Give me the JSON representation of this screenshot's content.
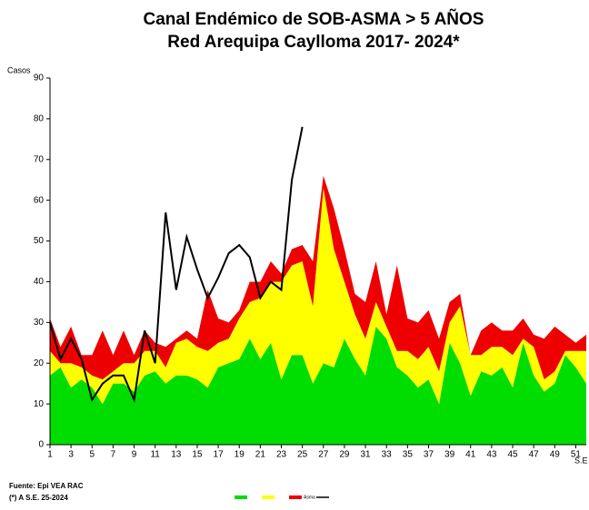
{
  "chart_data": {
    "type": "area",
    "title": "Canal Endémico de SOB-ASMA > 5 AÑOS",
    "subtitle": "Red Arequipa Caylloma 2017- 2024*",
    "y_label": "Casos",
    "x_label": "S.E",
    "source": "Fuente: Epi VEA RAC",
    "note": "(*) A S.E. 25-2024",
    "x": [
      1,
      2,
      3,
      4,
      5,
      6,
      7,
      8,
      9,
      10,
      11,
      12,
      13,
      14,
      15,
      16,
      17,
      18,
      19,
      20,
      21,
      22,
      23,
      24,
      25,
      26,
      27,
      28,
      29,
      30,
      31,
      32,
      33,
      34,
      35,
      36,
      37,
      38,
      39,
      40,
      41,
      42,
      43,
      44,
      45,
      46,
      47,
      48,
      49,
      50,
      51,
      52
    ],
    "xlim": [
      1,
      52
    ],
    "xticks": [
      1,
      3,
      5,
      7,
      9,
      11,
      13,
      15,
      17,
      19,
      21,
      23,
      25,
      27,
      29,
      31,
      33,
      35,
      37,
      39,
      41,
      43,
      45,
      47,
      49,
      51
    ],
    "ylim": [
      0,
      90
    ],
    "yticks": [
      0,
      10,
      20,
      30,
      40,
      50,
      60,
      70,
      80,
      90
    ],
    "series": [
      {
        "color": "#00dd00",
        "kind": "stacked",
        "values": [
          17,
          19,
          14,
          16,
          14,
          10,
          15,
          15,
          13,
          17,
          18,
          15,
          17,
          17,
          16,
          14,
          19,
          20,
          21,
          26,
          21,
          25,
          16,
          22,
          22,
          15,
          20,
          19,
          26,
          21,
          17,
          29,
          26,
          19,
          17,
          14,
          16,
          10,
          25,
          20,
          12,
          18,
          17,
          19,
          14,
          25,
          17,
          13,
          15,
          22,
          19,
          15
        ]
      },
      {
        "color": "#ffff00",
        "kind": "stacked",
        "values": [
          6,
          1,
          6,
          3,
          3,
          6,
          3,
          5,
          7,
          6,
          5,
          4,
          8,
          9,
          8,
          9,
          6,
          6,
          10,
          9,
          15,
          15,
          24,
          22,
          23,
          19,
          43,
          29,
          14,
          11,
          9,
          6,
          3,
          4,
          6,
          7,
          8,
          8,
          5,
          14,
          10,
          4,
          7,
          5,
          8,
          1,
          7,
          3,
          3,
          1,
          4,
          8
        ]
      },
      {
        "name": "Asma",
        "color": "#ee0000",
        "kind": "stacked",
        "values": [
          8,
          4,
          9,
          3,
          5,
          12,
          4,
          8,
          2,
          5,
          2,
          5,
          1,
          2,
          2,
          15,
          6,
          4,
          2,
          5,
          4,
          5,
          2,
          4,
          4,
          11,
          3,
          10,
          8,
          5,
          9,
          10,
          3,
          21,
          8,
          9,
          9,
          8,
          5,
          3,
          0,
          6,
          6,
          4,
          6,
          5,
          3,
          10,
          11,
          4,
          2,
          4
        ]
      },
      {
        "color": "#000000",
        "kind": "line",
        "values": [
          30,
          21,
          26,
          21,
          11,
          15,
          17,
          17,
          11,
          28,
          20,
          57,
          38,
          51,
          43,
          36,
          41,
          47,
          49,
          46,
          36,
          40,
          38,
          65,
          78,
          null,
          null,
          null,
          null,
          null,
          null,
          null,
          null,
          null,
          null,
          null,
          null,
          null,
          null,
          null,
          null,
          null,
          null,
          null,
          null,
          null,
          null,
          null,
          null,
          null,
          null,
          null
        ]
      }
    ]
  }
}
